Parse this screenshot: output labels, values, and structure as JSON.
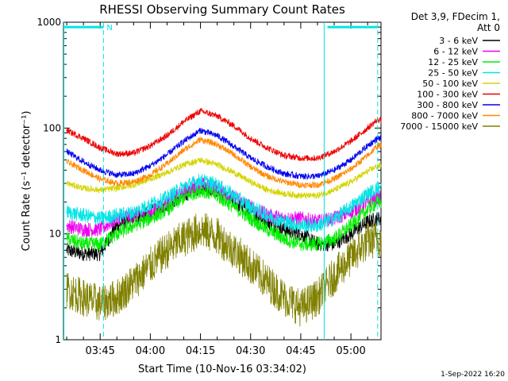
{
  "chart_data": {
    "type": "line",
    "title": "RHESSI Observing Summary Count Rates",
    "xlabel": "Start Time (10-Nov-16 03:34:02)",
    "ylabel": "Count Rate (s⁻¹ detector⁻¹)",
    "yscale": "log",
    "ylim": [
      1,
      1000
    ],
    "xlim": [
      "03:34:02",
      "05:09:00"
    ],
    "x_ticks": [
      "03:45",
      "04:00",
      "04:15",
      "04:30",
      "04:45",
      "05:00"
    ],
    "y_ticks": [
      "1",
      "10",
      "100",
      "1000"
    ],
    "legend_header": [
      "Det 3,9, FDecim 1,",
      "Att 0"
    ],
    "legend_position": "right",
    "timestamp": "1-Sep-2022 16:20",
    "annotations": [
      {
        "type": "flag",
        "label": "N",
        "start": "03:34:02",
        "end": "03:46:00",
        "value": 900
      },
      {
        "type": "flag",
        "label": "",
        "start": "04:53:00",
        "end": "05:08:00",
        "value": 900
      }
    ],
    "markers": [
      {
        "time": "03:34:10",
        "style": "solid",
        "color": "#00e5e5"
      },
      {
        "time": "03:46:00",
        "style": "dashed",
        "color": "#00e5e5"
      },
      {
        "time": "04:52:00",
        "style": "solid",
        "color": "#00e5e5"
      },
      {
        "time": "05:08:00",
        "style": "dashed",
        "color": "#00e5e5"
      }
    ],
    "x": [
      "03:35",
      "03:40",
      "03:45",
      "03:50",
      "03:55",
      "04:00",
      "04:05",
      "04:10",
      "04:15",
      "04:20",
      "04:25",
      "04:30",
      "04:35",
      "04:40",
      "04:45",
      "04:50",
      "04:55",
      "05:00",
      "05:05",
      "05:08"
    ],
    "series": [
      {
        "name": "3 - 6 keV",
        "color": "#000000",
        "values": [
          7,
          6.5,
          6.5,
          12,
          14,
          16,
          19,
          23,
          28,
          25,
          20,
          16,
          13,
          11,
          10,
          8,
          8,
          10,
          13,
          14
        ]
      },
      {
        "name": "6 - 12 keV",
        "color": "#ee00ee",
        "values": [
          12,
          11,
          11,
          14,
          15,
          16,
          20,
          25,
          30,
          27,
          22,
          18,
          15,
          14,
          14,
          13,
          14,
          16,
          20,
          22
        ]
      },
      {
        "name": "12 - 25 keV",
        "color": "#00ee00",
        "values": [
          9,
          8,
          8,
          10,
          12,
          14,
          17,
          22,
          26,
          23,
          18,
          14,
          11,
          9,
          8,
          8,
          9,
          12,
          17,
          20
        ]
      },
      {
        "name": "25 - 50 keV",
        "color": "#00e5e5",
        "values": [
          16,
          15,
          14,
          15,
          16,
          19,
          22,
          28,
          32,
          29,
          23,
          18,
          15,
          13,
          12,
          12,
          14,
          18,
          24,
          27
        ]
      },
      {
        "name": "50 - 100 keV",
        "color": "#d4d400",
        "values": [
          30,
          27,
          26,
          27,
          29,
          33,
          38,
          45,
          50,
          45,
          38,
          31,
          26,
          24,
          23,
          23,
          26,
          31,
          39,
          44
        ]
      },
      {
        "name": "100 - 300 keV",
        "color": "#ee0000",
        "values": [
          95,
          80,
          65,
          57,
          58,
          68,
          85,
          115,
          145,
          130,
          105,
          80,
          65,
          55,
          52,
          52,
          60,
          75,
          100,
          120
        ]
      },
      {
        "name": "300 - 800 keV",
        "color": "#0000ee",
        "values": [
          60,
          48,
          40,
          36,
          37,
          44,
          56,
          75,
          95,
          85,
          67,
          52,
          43,
          37,
          35,
          35,
          40,
          50,
          68,
          80
        ]
      },
      {
        "name": "800 - 7000 keV",
        "color": "#ff8800",
        "values": [
          48,
          40,
          33,
          30,
          31,
          36,
          46,
          62,
          78,
          70,
          56,
          43,
          35,
          31,
          29,
          29,
          33,
          41,
          55,
          68
        ]
      },
      {
        "name": "7000 - 15000 keV",
        "color": "#808000",
        "values": [
          3,
          2.5,
          2.2,
          2.5,
          3.5,
          5,
          7,
          9,
          11,
          9.5,
          7,
          5,
          3.5,
          2.5,
          2,
          2.5,
          4,
          6,
          8.5,
          9
        ]
      }
    ]
  }
}
